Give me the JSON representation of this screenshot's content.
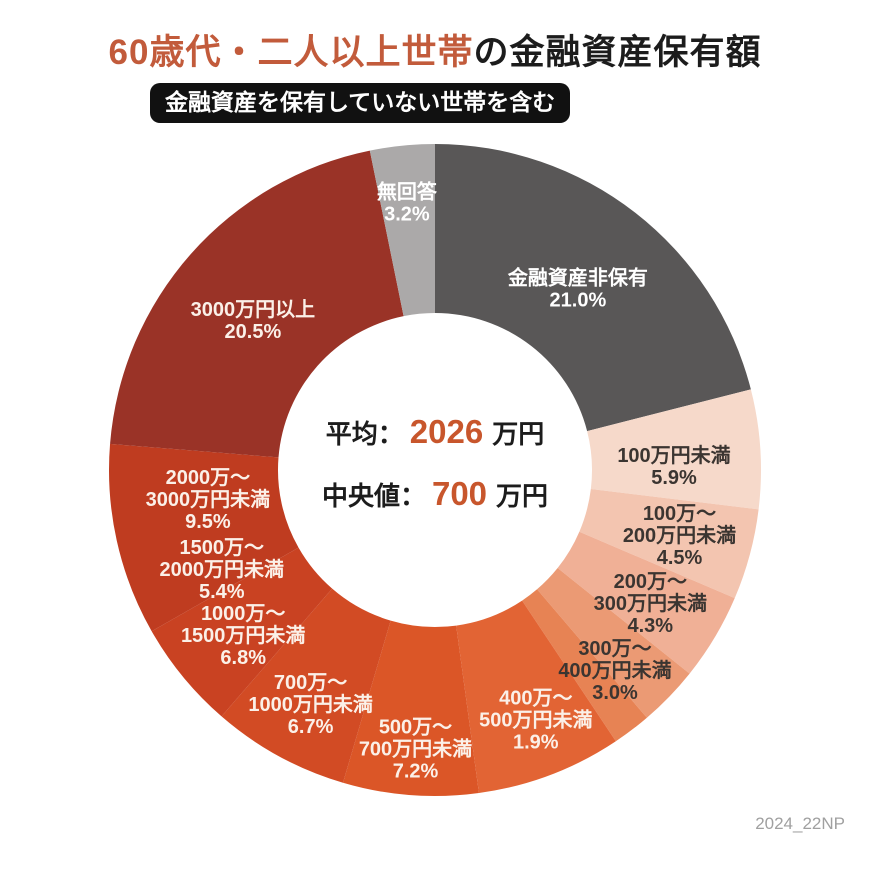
{
  "title": {
    "accent": "60歳代・二人以上世帯",
    "rest": "の金融資産保有額"
  },
  "badge": "金融資産を保有していない世帯を含む",
  "watermark": "2024_22NP",
  "center": {
    "avg_label": "平均：",
    "avg_value": "2026",
    "avg_unit": "万円",
    "median_label": "中央値：",
    "median_value": "700",
    "median_unit": "万円",
    "accent_color": "#c8562c"
  },
  "chart_data": {
    "type": "pie",
    "donut": true,
    "title": "60歳代・二人以上世帯の金融資産保有額（金融資産を保有していない世帯を含む）",
    "start_angle_deg": 0,
    "direction": "clockwise",
    "unit": "%",
    "stats": {
      "mean_man_yen": 2026,
      "median_man_yen": 700
    },
    "segments": [
      {
        "label": "金融資産非保有",
        "pct": 21.0,
        "color": "#595757",
        "label_color": "#ffffff",
        "label_lines": [
          "金融資産非保有",
          "21.0%"
        ],
        "label_angle": 38.2,
        "label_radius": 231
      },
      {
        "label": "100万円未満",
        "pct": 5.9,
        "color": "#f6d9ca",
        "label_color": "#3b3531",
        "label_lines": [
          "100万円未満",
          "5.9%"
        ],
        "label_angle": 89,
        "label_radius": 239
      },
      {
        "label": "100万～200万円未満",
        "pct": 4.5,
        "color": "#f3c5b0",
        "label_color": "#3b3531",
        "label_lines": [
          "100万～",
          "200万円未満",
          "4.5%"
        ],
        "label_angle": 104.9,
        "label_radius": 253
      },
      {
        "label": "200万～300万円未満",
        "pct": 4.3,
        "color": "#f0b096",
        "label_color": "#3b3531",
        "label_lines": [
          "200万～",
          "300万円未満",
          "4.3%"
        ],
        "label_angle": 121.7,
        "label_radius": 253
      },
      {
        "label": "300万～400万円未満",
        "pct": 3.0,
        "color": "#eb9a74",
        "label_color": "#3b3531",
        "label_lines": [
          "300万～",
          "400万円未満",
          "3.0%"
        ],
        "label_angle": 138,
        "label_radius": 269
      },
      {
        "label": "400万～500万円未満",
        "pct": 1.9,
        "color": "#e78354",
        "label_color": "#fbf0e8",
        "label_lines": [
          "400万～",
          "500万円未満",
          "1.9%"
        ],
        "label_angle": 158,
        "label_radius": 269
      },
      {
        "label": "500万～700万円未満",
        "pct": 7.2,
        "color": "#e26434",
        "label_color": "#fbf0e8",
        "label_lines": [
          "500万～",
          "700万円未満",
          "7.2%"
        ],
        "label_angle": 184,
        "label_radius": 279
      },
      {
        "label": "700万～1000万円未満",
        "pct": 6.7,
        "color": "#db5627",
        "label_color": "#fbf0e8",
        "label_lines": [
          "700万～",
          "1000万円未満",
          "6.7%"
        ],
        "label_angle": 208,
        "label_radius": 265
      },
      {
        "label": "1000万～1500万円未満",
        "pct": 6.8,
        "color": "#d24b24",
        "label_color": "#fbf0e8",
        "label_lines": [
          "1000万～",
          "1500万円未満",
          "6.8%"
        ],
        "label_angle": 229.3,
        "label_radius": 253
      },
      {
        "label": "1500万～2000万円未満",
        "pct": 5.4,
        "color": "#c94222",
        "label_color": "#fbf0e8",
        "label_lines": [
          "1500万～",
          "2000万円未満",
          "5.4%"
        ],
        "label_angle": 245.1,
        "label_radius": 235
      },
      {
        "label": "2000万～3000万円未満",
        "pct": 9.5,
        "color": "#bf3c20",
        "label_color": "#fbf0e8",
        "label_lines": [
          "2000万～",
          "3000万円未満",
          "9.5%"
        ],
        "label_angle": 262.7,
        "label_radius": 229
      },
      {
        "label": "3000万円以上",
        "pct": 20.5,
        "color": "#9a3327",
        "label_color": "#fbf0e8",
        "label_lines": [
          "3000万円以上",
          "20.5%"
        ],
        "label_angle": 309.5,
        "label_radius": 236
      },
      {
        "label": "無回答",
        "pct": 3.2,
        "color": "#aba9a9",
        "label_color": "#ffffff",
        "label_lines": [
          "無回答",
          "3.2%"
        ],
        "label_angle": 354,
        "label_radius": 269
      }
    ]
  }
}
